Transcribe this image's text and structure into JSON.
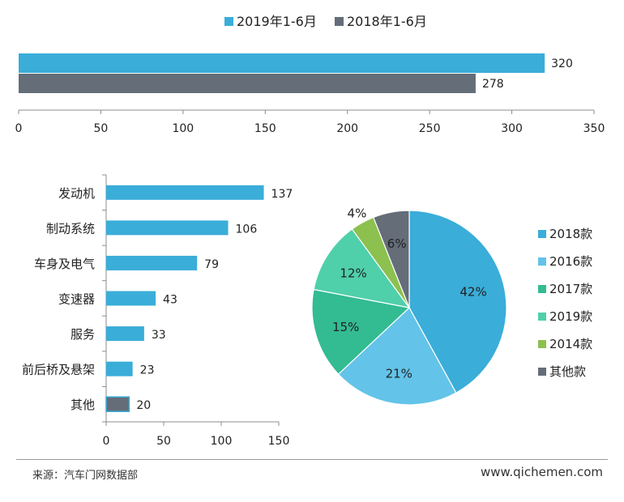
{
  "colors": {
    "blue": "#3aadd9",
    "gray": "#646d78",
    "pie_2018": "#3aadd9",
    "pie_2016": "#63c3e8",
    "pie_2017": "#33bb92",
    "pie_2019": "#4fd0aa",
    "pie_2014": "#8cc04f",
    "pie_other": "#646d78"
  },
  "chart_data": [
    {
      "type": "bar",
      "orientation": "horizontal",
      "series": [
        {
          "name": "2019年1-6月",
          "values": [
            320
          ],
          "color": "#3aadd9"
        },
        {
          "name": "2018年1-6月",
          "values": [
            278
          ],
          "color": "#646d78"
        }
      ],
      "xlim": [
        0,
        350
      ],
      "x_ticks": [
        0,
        50,
        100,
        150,
        200,
        250,
        300,
        350
      ],
      "legend": "top"
    },
    {
      "type": "bar",
      "orientation": "horizontal",
      "categories": [
        "发动机",
        "制动系统",
        "车身及电气",
        "变速器",
        "服务",
        "前后桥及悬架",
        "其他"
      ],
      "values": [
        137,
        106,
        79,
        43,
        33,
        23,
        20
      ],
      "xlim": [
        0,
        150
      ],
      "x_ticks": [
        0,
        50,
        100,
        150
      ],
      "highlight_last": true
    },
    {
      "type": "pie",
      "categories": [
        "2018款",
        "2016款",
        "2017款",
        "2019款",
        "2014款",
        "其他款"
      ],
      "values": [
        42,
        21,
        15,
        12,
        4,
        6
      ],
      "labels": [
        "42%",
        "21%",
        "15%",
        "12%",
        "4%",
        "6%"
      ],
      "colors": [
        "#3aadd9",
        "#63c3e8",
        "#33bb92",
        "#4fd0aa",
        "#8cc04f",
        "#646d78"
      ],
      "legend": "right"
    }
  ],
  "footer": {
    "source": "来源：汽车门网数据部",
    "website": "www.qichemen.com"
  }
}
